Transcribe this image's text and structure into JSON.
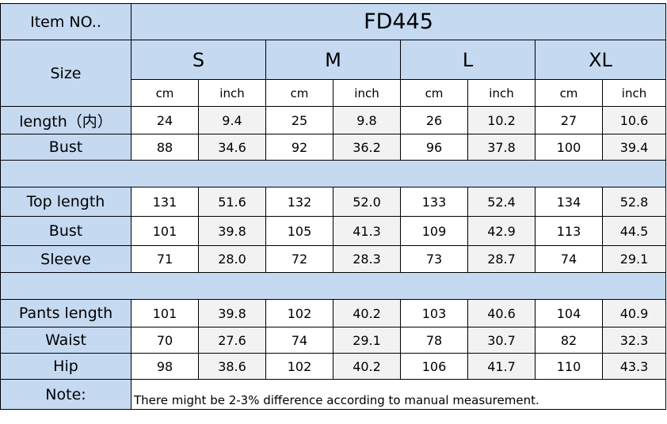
{
  "header": {
    "item_label": "Item NO..",
    "item_value": "FD445",
    "size_label": "Size",
    "sizes": [
      "S",
      "M",
      "L",
      "XL"
    ],
    "units": [
      "cm",
      "inch"
    ]
  },
  "sections": [
    {
      "rows": [
        {
          "label": "length（内）",
          "values": [
            "24",
            "9.4",
            "25",
            "9.8",
            "26",
            "10.2",
            "27",
            "10.6"
          ]
        },
        {
          "label": "Bust",
          "values": [
            "88",
            "34.6",
            "92",
            "36.2",
            "96",
            "37.8",
            "100",
            "39.4"
          ]
        }
      ]
    },
    {
      "rows": [
        {
          "label": "Top  length",
          "values": [
            "131",
            "51.6",
            "132",
            "52.0",
            "133",
            "52.4",
            "134",
            "52.8"
          ]
        },
        {
          "label": "Bust",
          "values": [
            "101",
            "39.8",
            "105",
            "41.3",
            "109",
            "42.9",
            "113",
            "44.5"
          ]
        },
        {
          "label": "Sleeve",
          "values": [
            "71",
            "28.0",
            "72",
            "28.3",
            "73",
            "28.7",
            "74",
            "29.1"
          ]
        }
      ]
    },
    {
      "rows": [
        {
          "label": "Pants length",
          "values": [
            "101",
            "39.8",
            "102",
            "40.2",
            "103",
            "40.6",
            "104",
            "40.9"
          ]
        },
        {
          "label": "Waist",
          "values": [
            "70",
            "27.6",
            "74",
            "29.1",
            "78",
            "30.7",
            "82",
            "32.3"
          ]
        },
        {
          "label": "Hip",
          "values": [
            "98",
            "38.6",
            "102",
            "40.2",
            "106",
            "41.7",
            "110",
            "43.3"
          ]
        }
      ]
    }
  ],
  "note": {
    "label": "Note:",
    "text": "There might be 2-3% difference according to manual measurement."
  }
}
